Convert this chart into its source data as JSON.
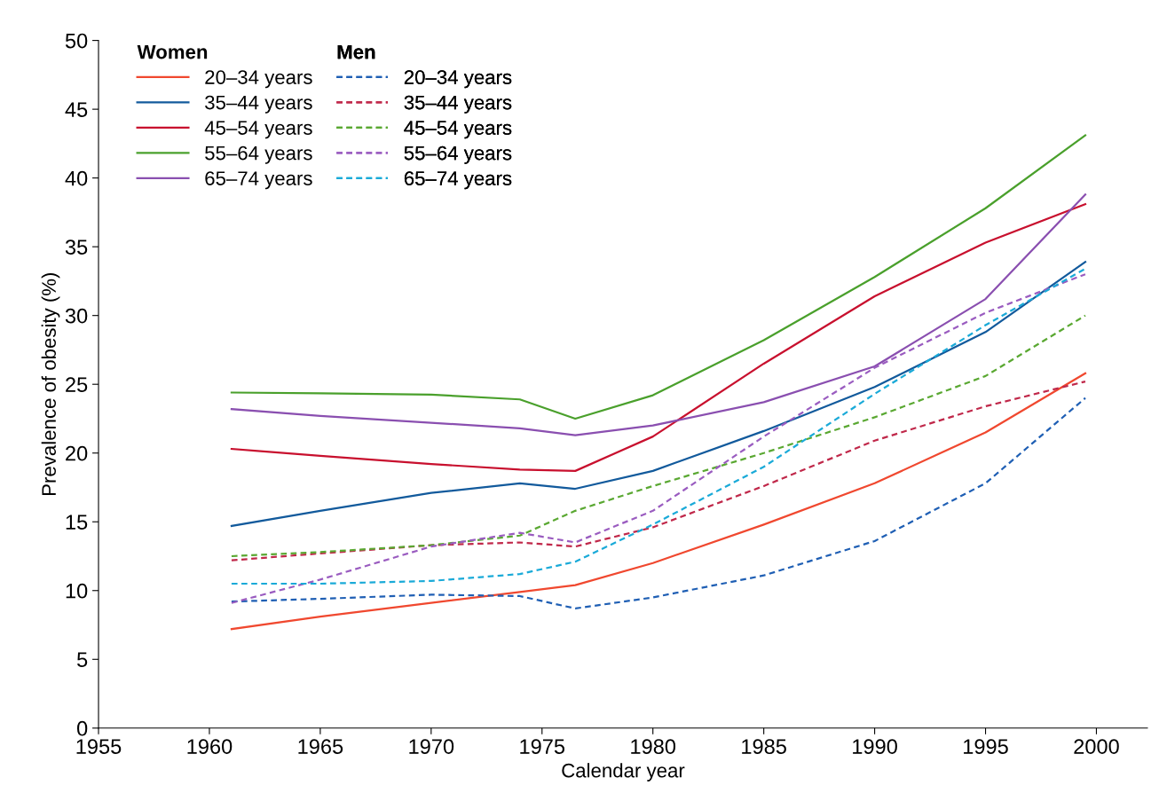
{
  "chart_data": {
    "type": "line",
    "xlabel": "Calendar year",
    "ylabel": "Prevalence of obesity (%)",
    "x": [
      1961,
      1965,
      1970,
      1974,
      1976.5,
      1980,
      1985,
      1990,
      1995,
      1999.5
    ],
    "xlim": [
      1955,
      2002.3
    ],
    "xticks": [
      1955,
      1960,
      1965,
      1970,
      1975,
      1980,
      1985,
      1990,
      1995,
      2000
    ],
    "ylim": [
      0,
      50
    ],
    "yticks": [
      0,
      5,
      10,
      15,
      20,
      25,
      30,
      35,
      40,
      45,
      50
    ],
    "grid": false,
    "legend": "top left",
    "marker": "none",
    "annotations": [
      "Women",
      "Men"
    ],
    "series": [
      {
        "name": "20–34 years",
        "color": "#f0482f",
        "line_style": "solid",
        "values": [
          7.2,
          8.1,
          9.1,
          9.9,
          10.4,
          12.0,
          14.8,
          17.8,
          21.5,
          25.8
        ]
      },
      {
        "name": "35–44 years",
        "color": "#125a9c",
        "line_style": "solid",
        "values": [
          14.7,
          15.8,
          17.1,
          17.8,
          17.4,
          18.7,
          21.6,
          24.8,
          28.8,
          33.9
        ]
      },
      {
        "name": "45–54 years",
        "color": "#c8102e",
        "line_style": "solid",
        "values": [
          20.3,
          19.8,
          19.2,
          18.8,
          18.7,
          21.2,
          26.5,
          31.4,
          35.3,
          38.1
        ]
      },
      {
        "name": "55–64 years",
        "color": "#4aa02c",
        "line_style": "solid",
        "values": [
          24.4,
          24.35,
          24.25,
          23.9,
          22.5,
          24.2,
          28.2,
          32.8,
          37.8,
          43.1
        ]
      },
      {
        "name": "65–74 years",
        "color": "#8a4fb0",
        "line_style": "solid",
        "values": [
          23.2,
          22.7,
          22.2,
          21.8,
          21.3,
          22.0,
          23.7,
          26.3,
          31.2,
          38.8
        ]
      },
      {
        "name": "20–34 years",
        "color": "#1f5fb4",
        "line_style": "dashed",
        "values": [
          9.2,
          9.4,
          9.7,
          9.6,
          8.7,
          9.5,
          11.1,
          13.6,
          17.8,
          24.0
        ]
      },
      {
        "name": "35–44 years",
        "color": "#c0284a",
        "line_style": "dashed",
        "values": [
          12.2,
          12.7,
          13.3,
          13.5,
          13.2,
          14.6,
          17.6,
          20.9,
          23.4,
          25.2
        ]
      },
      {
        "name": "45–54 years",
        "color": "#5aa832",
        "line_style": "dashed",
        "values": [
          12.5,
          12.8,
          13.3,
          14.0,
          15.8,
          17.6,
          20.0,
          22.6,
          25.6,
          30.0
        ]
      },
      {
        "name": "55–64 years",
        "color": "#9a5cc0",
        "line_style": "dashed",
        "values": [
          9.1,
          10.8,
          13.2,
          14.2,
          13.5,
          15.8,
          21.2,
          26.2,
          30.2,
          33.0
        ]
      },
      {
        "name": "65–74 years",
        "color": "#1aaad8",
        "line_style": "dashed",
        "values": [
          10.5,
          10.5,
          10.7,
          11.2,
          12.1,
          14.8,
          19.0,
          24.3,
          29.3,
          33.4
        ]
      }
    ]
  }
}
